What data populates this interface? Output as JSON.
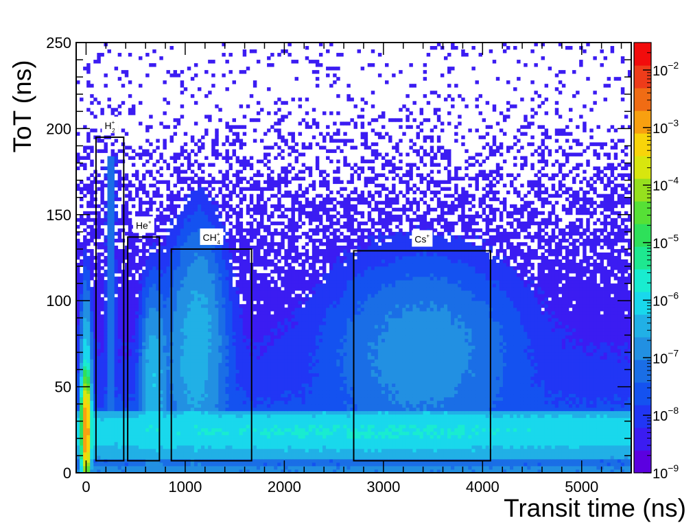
{
  "chart_data": {
    "type": "heatmap",
    "title": "",
    "xlabel": "Transit time (ns)",
    "ylabel": "ToT (ns)",
    "xlim": [
      -100,
      5500
    ],
    "ylim": [
      0,
      250
    ],
    "x_ticks": [
      {
        "value": 0,
        "label": "0"
      },
      {
        "value": 1000,
        "label": "1000"
      },
      {
        "value": 2000,
        "label": "2000"
      },
      {
        "value": 3000,
        "label": "3000"
      },
      {
        "value": 4000,
        "label": "4000"
      },
      {
        "value": 5000,
        "label": "5000"
      }
    ],
    "y_ticks": [
      {
        "value": 0,
        "label": "0"
      },
      {
        "value": 50,
        "label": "50"
      },
      {
        "value": 100,
        "label": "100"
      },
      {
        "value": 150,
        "label": "150"
      },
      {
        "value": 200,
        "label": "200"
      },
      {
        "value": 250,
        "label": "250"
      }
    ],
    "colorbar": {
      "scale": "log",
      "range": [
        1e-09,
        0.03
      ],
      "ticks": [
        {
          "exp": -9,
          "label": "10^-9"
        },
        {
          "exp": -8,
          "label": "10^-8"
        },
        {
          "exp": -7,
          "label": "10^-7"
        },
        {
          "exp": -6,
          "label": "10^-6"
        },
        {
          "exp": -5,
          "label": "10^-5"
        },
        {
          "exp": -4,
          "label": "10^-4"
        },
        {
          "exp": -3,
          "label": "10^-3"
        },
        {
          "exp": -2,
          "label": "10^-2"
        }
      ],
      "palette": [
        "#5b00e0",
        "#3b1cf2",
        "#2136f5",
        "#1452f0",
        "#1a6ee6",
        "#2290e2",
        "#21b0e6",
        "#19d8ec",
        "#19ecd0",
        "#1ee890",
        "#2ee05a",
        "#56e036",
        "#96e01e",
        "#d8e60e",
        "#f8d40a",
        "#f8a010",
        "#f06c14",
        "#ee3c1a",
        "#f20c0c"
      ]
    },
    "annotations": [
      {
        "label": "H",
        "sup": "+",
        "sub": "2",
        "x0": 100,
        "x1": 380,
        "y0": 7,
        "y1": 195
      },
      {
        "label": "He",
        "sup": "+",
        "sub": "",
        "x0": 420,
        "x1": 740,
        "y0": 7,
        "y1": 137
      },
      {
        "label": "CH",
        "sup": "+",
        "sub": "4",
        "x0": 860,
        "x1": 1670,
        "y0": 7,
        "y1": 130
      },
      {
        "label": "Cs",
        "sup": "+",
        "sub": "",
        "x0": 2700,
        "x1": 4080,
        "y0": 7,
        "y1": 129
      }
    ],
    "features": [
      {
        "name": "baseline band",
        "tot_range": [
          8,
          35
        ],
        "peak_tot": 24,
        "peak_time": 2900
      },
      {
        "name": "H2+ spike",
        "time": 250,
        "tot_range": [
          10,
          180
        ]
      },
      {
        "name": "He+ lobe",
        "time": 680,
        "peak_tot": 50
      },
      {
        "name": "CH4+ lobe",
        "time": 1100,
        "peak_tot": 65
      },
      {
        "name": "Cs+ lobe",
        "time": 3400,
        "peak_tot": 70
      },
      {
        "name": "prompt peak",
        "time": 0,
        "tot_range": [
          0,
          60
        ]
      }
    ]
  }
}
